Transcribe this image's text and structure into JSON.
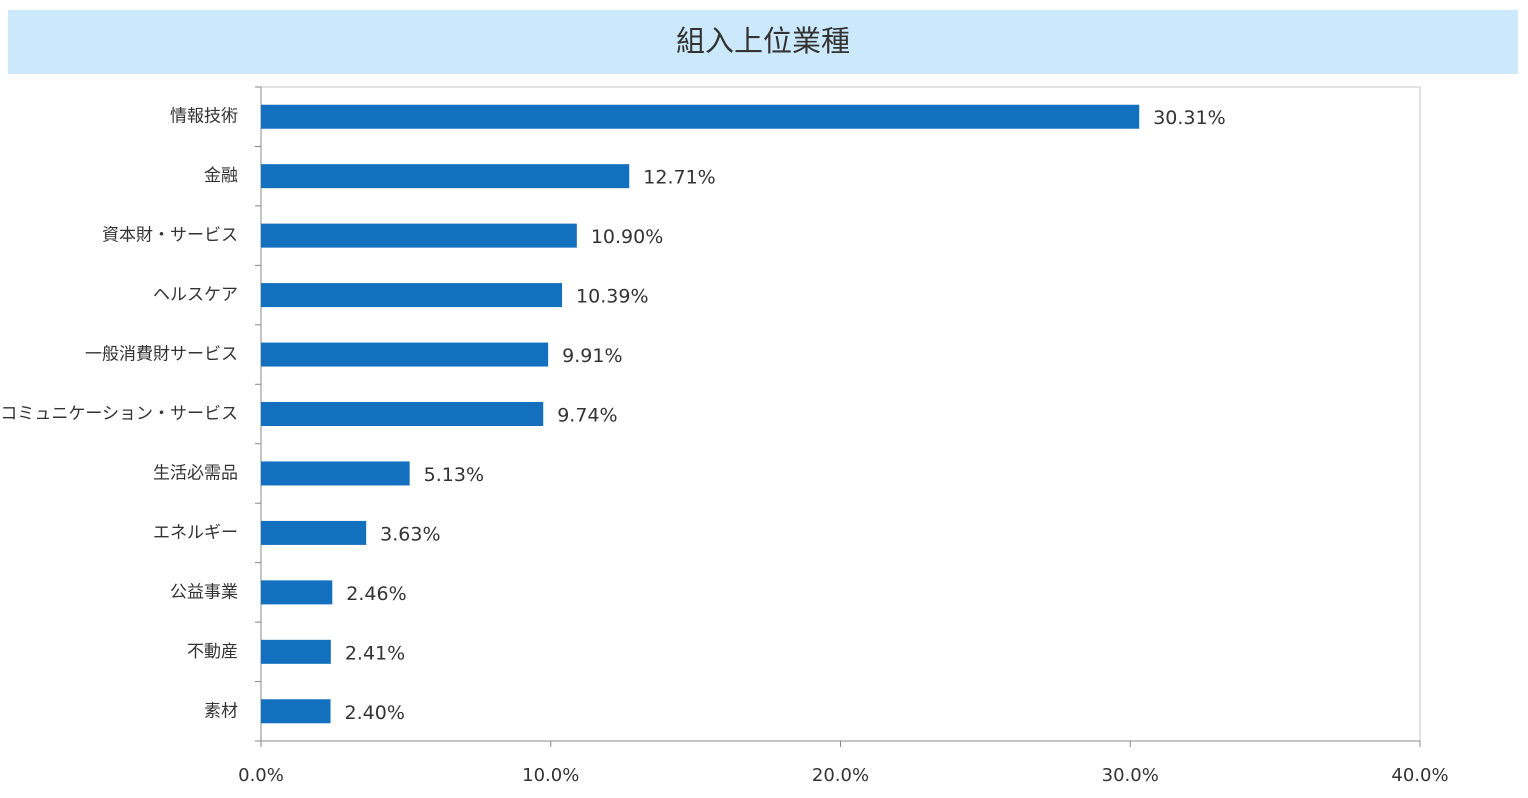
{
  "chart_data": {
    "type": "bar",
    "orientation": "horizontal",
    "title": "組入上位業種",
    "categories": [
      "情報技術",
      "金融",
      "資本財・サービス",
      "ヘルスケア",
      "一般消費財サービス",
      "コミュニケーション・サービス",
      "生活必需品",
      "エネルギー",
      "公益事業",
      "不動産",
      "素材"
    ],
    "values": [
      30.31,
      12.71,
      10.9,
      10.39,
      9.91,
      9.74,
      5.13,
      3.63,
      2.46,
      2.41,
      2.4
    ],
    "value_labels": [
      "30.31%",
      "12.71%",
      "10.90%",
      "10.39%",
      "9.91%",
      "9.74%",
      "5.13%",
      "3.63%",
      "2.46%",
      "2.41%",
      "2.40%"
    ],
    "color": "#1270be",
    "xlim": [
      0,
      40
    ],
    "xticks": [
      {
        "value": 0,
        "label": "0.0%"
      },
      {
        "value": 10,
        "label": "10.0%"
      },
      {
        "value": 20,
        "label": "20.0%"
      },
      {
        "value": 30,
        "label": "30.0%"
      },
      {
        "value": 40,
        "label": "40.0%"
      }
    ],
    "grid": false
  }
}
